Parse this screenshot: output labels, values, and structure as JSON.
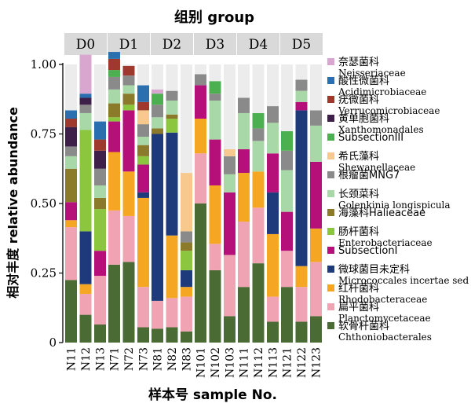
{
  "chart_data": {
    "type": "bar",
    "stacked": true,
    "title": "组别 group",
    "xlabel": "样本号 sample No.",
    "ylabel": "相对丰度 relative abundance",
    "ylim": [
      0,
      1
    ],
    "yticks": [
      "0",
      "0.25",
      "0.50",
      "0.75",
      "1.00"
    ],
    "grid": false,
    "legend_position": "right",
    "groups": [
      {
        "label": "D0",
        "samples": [
          "N11",
          "N12",
          "N13"
        ]
      },
      {
        "label": "D1",
        "samples": [
          "N71",
          "N72",
          "N73"
        ]
      },
      {
        "label": "D2",
        "samples": [
          "N81",
          "N82",
          "N83"
        ]
      },
      {
        "label": "D3",
        "samples": [
          "N101",
          "N102",
          "N103"
        ]
      },
      {
        "label": "D4",
        "samples": [
          "N111",
          "N112",
          "N113"
        ]
      },
      {
        "label": "D5",
        "samples": [
          "N121",
          "N122",
          "N123"
        ]
      }
    ],
    "categories": [
      "N11",
      "N12",
      "N13",
      "N71",
      "N72",
      "N73",
      "N81",
      "N82",
      "N83",
      "N101",
      "N102",
      "N103",
      "N111",
      "N112",
      "N113",
      "N121",
      "N122",
      "N123"
    ],
    "series": [
      {
        "name_cn": "软骨杆菌科",
        "name": "Chthoniobacterales",
        "color": "#4a6b33",
        "values": [
          0.225,
          0.1,
          0.065,
          0.28,
          0.29,
          0.055,
          0.05,
          0.055,
          0.04,
          0.5,
          0.26,
          0.095,
          0.2,
          0.285,
          0.075,
          0.2,
          0.075,
          0.095
        ]
      },
      {
        "name_cn": "扁平菌科",
        "name": "Planctomycetaceae",
        "color": "#f0a3b3",
        "values": [
          0.19,
          0.075,
          0.175,
          0.195,
          0.165,
          0.145,
          0.1,
          0.105,
          0.125,
          0.18,
          0.095,
          0.22,
          0.235,
          0.2,
          0.09,
          0.13,
          0.125,
          0.195
        ]
      },
      {
        "name_cn": "红杆菌科",
        "name": "Rhodobacteraceae",
        "color": "#f5a623",
        "values": [
          0.025,
          0.035,
          0.0,
          0.21,
          0.16,
          0.32,
          0.0,
          0.225,
          0.035,
          0.125,
          0.21,
          0.0,
          0.175,
          0.13,
          0.225,
          0.0,
          0.075,
          0.12
        ]
      },
      {
        "name_cn": "微球菌目未定科",
        "name": "Micrococcales incertae sed",
        "color": "#1f3a7a",
        "values": [
          0.0,
          0.19,
          0.0,
          0.0,
          0.0,
          0.02,
          0.6,
          0.37,
          0.06,
          0.0,
          0.0,
          0.0,
          0.0,
          0.0,
          0.15,
          0.0,
          0.56,
          0.0
        ]
      },
      {
        "name_cn": "SubsectionI",
        "name": "",
        "color": "#b5107a",
        "values": [
          0.065,
          0.0,
          0.09,
          0.11,
          0.22,
          0.1,
          0.0,
          0.0,
          0.0,
          0.12,
          0.165,
          0.225,
          0.085,
          0.0,
          0.14,
          0.14,
          0.03,
          0.24
        ]
      },
      {
        "name_cn": "肠杆菌科",
        "name": "Enterobacteriaceae",
        "color": "#8cc63f",
        "values": [
          0.0,
          0.365,
          0.15,
          0.015,
          0.02,
          0.03,
          0.0,
          0.05,
          0.07,
          0.0,
          0.0,
          0.0,
          0.0,
          0.0,
          0.0,
          0.0,
          0.0,
          0.0
        ]
      },
      {
        "name_cn": "海藻科Halieaceae",
        "name": "",
        "color": "#8a7a2a",
        "values": [
          0.12,
          0.0,
          0.04,
          0.05,
          0.04,
          0.04,
          0.02,
          0.015,
          0.03,
          0.0,
          0.0,
          0.0,
          0.0,
          0.0,
          0.0,
          0.0,
          0.0,
          0.0
        ]
      },
      {
        "name_cn": "长颈菜科",
        "name": "Golenkinia longispicula",
        "color": "#a8d8a8",
        "values": [
          0.045,
          0.06,
          0.045,
          0.05,
          0.03,
          0.03,
          0.04,
          0.05,
          0.0,
          0.0,
          0.14,
          0.065,
          0.13,
          0.11,
          0.11,
          0.15,
          0.04,
          0.13
        ]
      },
      {
        "name_cn": "根瘤菌MNG7",
        "name": "",
        "color": "#8a8a8a",
        "values": [
          0.035,
          0.03,
          0.06,
          0.045,
          0.035,
          0.045,
          0.045,
          0.035,
          0.04,
          0.04,
          0.025,
          0.065,
          0.055,
          0.045,
          0.06,
          0.07,
          0.04,
          0.055
        ]
      },
      {
        "name_cn": "希氏藻科",
        "name": "Shewanellaceae",
        "color": "#f7c98e",
        "values": [
          0.0,
          0.0,
          0.0,
          0.0,
          0.0,
          0.05,
          0.0,
          0.0,
          0.21,
          0.0,
          0.0,
          0.025,
          0.0,
          0.0,
          0.0,
          0.0,
          0.0,
          0.0
        ]
      },
      {
        "name_cn": "SubsectionIII",
        "name": "",
        "color": "#4cb050",
        "values": [
          0.0,
          0.0,
          0.0,
          0.025,
          0.0,
          0.0,
          0.04,
          0.0,
          0.0,
          0.0,
          0.045,
          0.0,
          0.0,
          0.055,
          0.0,
          0.07,
          0.0,
          0.0
        ]
      },
      {
        "name_cn": "黄单胞菌科",
        "name": "Xanthomonadales",
        "color": "#3d1f4a",
        "values": [
          0.07,
          0.025,
          0.065,
          0.0,
          0.0,
          0.0,
          0.0,
          0.0,
          0.0,
          0.0,
          0.0,
          0.0,
          0.0,
          0.0,
          0.0,
          0.0,
          0.0,
          0.0
        ]
      },
      {
        "name_cn": "疣微菌科",
        "name": "Verrucomicrobiaceae",
        "color": "#a0392d",
        "values": [
          0.03,
          0.0,
          0.04,
          0.04,
          0.035,
          0.03,
          0.0,
          0.0,
          0.0,
          0.0,
          0.0,
          0.0,
          0.0,
          0.0,
          0.0,
          0.0,
          0.0,
          0.0
        ]
      },
      {
        "name_cn": "酸性微菌科",
        "name": "Acidimicrobiaceae",
        "color": "#2a6fb0",
        "values": [
          0.03,
          0.015,
          0.065,
          0.025,
          0.0,
          0.06,
          0.0,
          0.0,
          0.0,
          0.0,
          0.0,
          0.0,
          0.0,
          0.0,
          0.0,
          0.0,
          0.0,
          0.0
        ]
      },
      {
        "name_cn": "奈瑟菌科",
        "name": "Neisseriaceae",
        "color": "#d9a6d0",
        "values": [
          0.0,
          0.14,
          0.0,
          0.0,
          0.0,
          0.0,
          0.015,
          0.0,
          0.0,
          0.0,
          0.0,
          0.0,
          0.0,
          0.0,
          0.0,
          0.0,
          0.0,
          0.0
        ]
      }
    ]
  }
}
